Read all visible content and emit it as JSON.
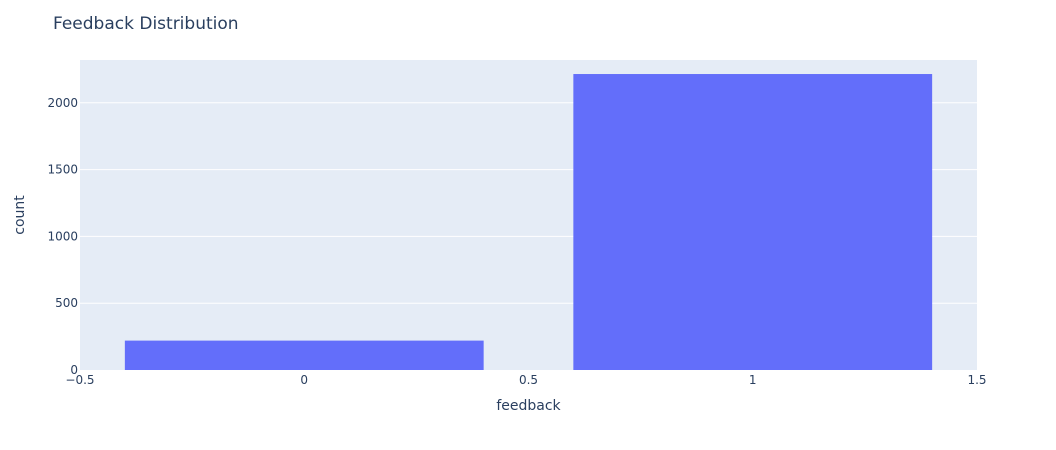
{
  "chart_data": {
    "type": "bar",
    "title": "Feedback Distribution",
    "xlabel": "feedback",
    "ylabel": "count",
    "x": [
      0,
      1
    ],
    "values": [
      220,
      2215
    ],
    "bar_width": 0.8,
    "xlim": [
      -0.5,
      1.5
    ],
    "ylim": [
      0,
      2320
    ],
    "x_ticks": [
      -0.5,
      0,
      0.5,
      1,
      1.5
    ],
    "x_tick_labels": [
      "−0.5",
      "0",
      "0.5",
      "1",
      "1.5"
    ],
    "y_ticks": [
      0,
      500,
      1000,
      1500,
      2000
    ],
    "y_tick_labels": [
      "0",
      "500",
      "1000",
      "1500",
      "2000"
    ],
    "grid": true,
    "colors": {
      "bar": "#636efa",
      "plot_bg": "#e5ecf6",
      "grid": "#ffffff",
      "text": "#2a3f5f"
    }
  }
}
